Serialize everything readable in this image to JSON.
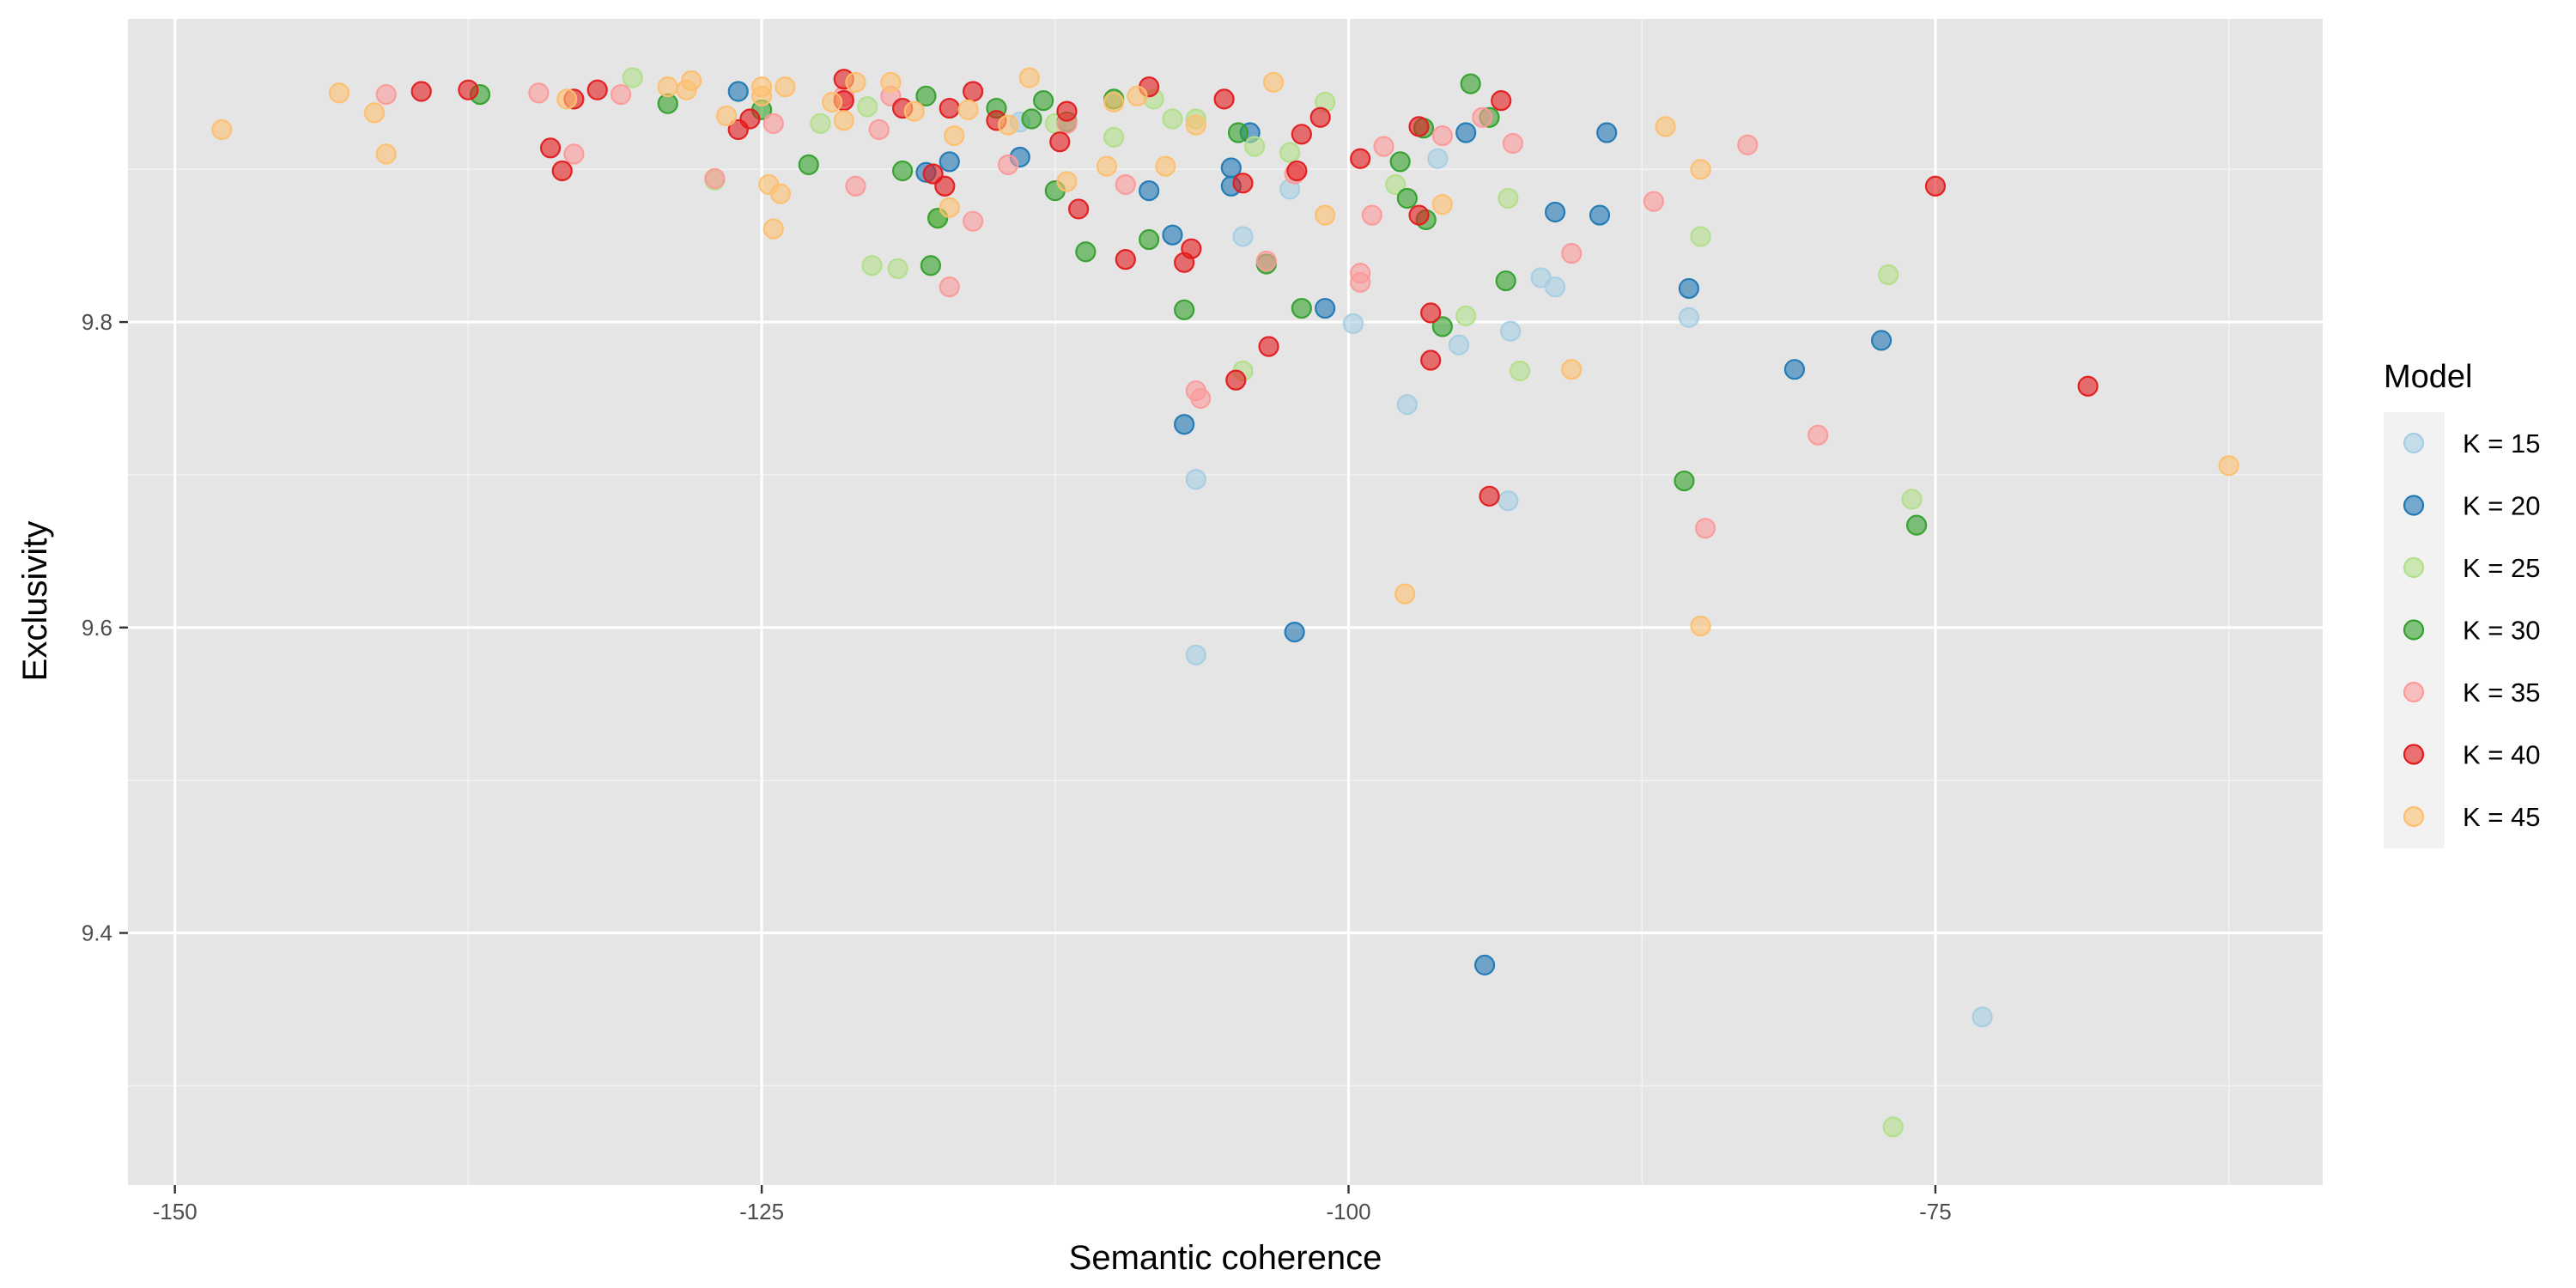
{
  "chart_data": {
    "type": "scatter",
    "title": "",
    "xlabel": "Semantic coherence",
    "ylabel": "Exclusivity",
    "xlim": [
      -152,
      -58.5
    ],
    "ylim": [
      9.235,
      9.9985
    ],
    "x_ticks": [
      -150,
      -125,
      -100,
      -75
    ],
    "x_tick_labels": [
      "-150",
      "-125",
      "-100",
      "-75"
    ],
    "y_ticks": [
      9.4,
      9.6,
      9.8
    ],
    "y_tick_labels": [
      "9.4",
      "9.6",
      "9.8"
    ],
    "grid": true,
    "panel_background": "#e5e5e5",
    "grid_color": "#ffffff",
    "legend": {
      "title": "Model",
      "position": "right"
    },
    "series": [
      {
        "name": "K = 15",
        "color": "#a6cee3",
        "points": [
          [
            -114,
            9.931
          ],
          [
            -106.5,
            9.697
          ],
          [
            -106.5,
            9.582
          ],
          [
            -104.5,
            9.856
          ],
          [
            -102.5,
            9.887
          ],
          [
            -99.8,
            9.799
          ],
          [
            -97.5,
            9.746
          ],
          [
            -96.2,
            9.907
          ],
          [
            -95.3,
            9.785
          ],
          [
            -93.1,
            9.794
          ],
          [
            -93.2,
            9.683
          ],
          [
            -91.8,
            9.829
          ],
          [
            -91.2,
            9.823
          ],
          [
            -85.5,
            9.803
          ],
          [
            -73,
            9.345
          ]
        ]
      },
      {
        "name": "K = 20",
        "color": "#1f78b4",
        "points": [
          [
            -126,
            9.951
          ],
          [
            -118,
            9.898
          ],
          [
            -117,
            9.905
          ],
          [
            -114,
            9.908
          ],
          [
            -108.5,
            9.886
          ],
          [
            -107.5,
            9.857
          ],
          [
            -107,
            9.733
          ],
          [
            -105,
            9.901
          ],
          [
            -105,
            9.889
          ],
          [
            -104.2,
            9.924
          ],
          [
            -102.3,
            9.597
          ],
          [
            -101,
            9.809
          ],
          [
            -95,
            9.924
          ],
          [
            -94.2,
            9.379
          ],
          [
            -91.2,
            9.872
          ],
          [
            -89.3,
            9.87
          ],
          [
            -89,
            9.924
          ],
          [
            -85.5,
            9.822
          ],
          [
            -81,
            9.769
          ],
          [
            -77.3,
            9.788
          ]
        ]
      },
      {
        "name": "K = 25",
        "color": "#b2df8a",
        "points": [
          [
            -130.5,
            9.96
          ],
          [
            -127,
            9.893
          ],
          [
            -122.5,
            9.93
          ],
          [
            -120.5,
            9.941
          ],
          [
            -120.3,
            9.837
          ],
          [
            -119.2,
            9.835
          ],
          [
            -117.5,
            9.868
          ],
          [
            -112.5,
            9.93
          ],
          [
            -110,
            9.921
          ],
          [
            -108.3,
            9.946
          ],
          [
            -107.5,
            9.933
          ],
          [
            -106.5,
            9.933
          ],
          [
            -104.5,
            9.768
          ],
          [
            -104,
            9.915
          ],
          [
            -102.5,
            9.911
          ],
          [
            -101,
            9.944
          ],
          [
            -98,
            9.89
          ],
          [
            -95,
            9.804
          ],
          [
            -93.2,
            9.881
          ],
          [
            -92.7,
            9.768
          ],
          [
            -85,
            9.856
          ],
          [
            -77,
            9.831
          ],
          [
            -76,
            9.684
          ],
          [
            -76.8,
            9.273
          ]
        ]
      },
      {
        "name": "K = 30",
        "color": "#33a02c",
        "points": [
          [
            -137,
            9.949
          ],
          [
            -129,
            9.943
          ],
          [
            -125,
            9.939
          ],
          [
            -123,
            9.903
          ],
          [
            -119,
            9.899
          ],
          [
            -118,
            9.948
          ],
          [
            -117.8,
            9.837
          ],
          [
            -117.5,
            9.868
          ],
          [
            -115,
            9.94
          ],
          [
            -113.5,
            9.933
          ],
          [
            -113,
            9.945
          ],
          [
            -112.5,
            9.886
          ],
          [
            -112,
            9.931
          ],
          [
            -111.2,
            9.846
          ],
          [
            -110,
            9.946
          ],
          [
            -108.5,
            9.854
          ],
          [
            -107,
            9.808
          ],
          [
            -104.7,
            9.924
          ],
          [
            -103.5,
            9.838
          ],
          [
            -102,
            9.809
          ],
          [
            -97.8,
            9.905
          ],
          [
            -97.5,
            9.881
          ],
          [
            -96.8,
            9.927
          ],
          [
            -96.7,
            9.867
          ],
          [
            -96,
            9.797
          ],
          [
            -94.8,
            9.956
          ],
          [
            -94,
            9.934
          ],
          [
            -93.3,
            9.827
          ],
          [
            -85.7,
            9.696
          ],
          [
            -75.8,
            9.667
          ]
        ]
      },
      {
        "name": "K = 35",
        "color": "#fb9a99",
        "points": [
          [
            -141,
            9.949
          ],
          [
            -134.5,
            9.95
          ],
          [
            -133,
            9.91
          ],
          [
            -131,
            9.949
          ],
          [
            -127,
            9.894
          ],
          [
            -124.5,
            9.93
          ],
          [
            -121.5,
            9.948
          ],
          [
            -121,
            9.889
          ],
          [
            -120,
            9.926
          ],
          [
            -119.5,
            9.948
          ],
          [
            -117,
            9.823
          ],
          [
            -116,
            9.866
          ],
          [
            -114.5,
            9.903
          ],
          [
            -112,
            9.93
          ],
          [
            -109.5,
            9.89
          ],
          [
            -106.5,
            9.755
          ],
          [
            -106.3,
            9.75
          ],
          [
            -103.5,
            9.84
          ],
          [
            -102.3,
            9.897
          ],
          [
            -99.5,
            9.832
          ],
          [
            -99.5,
            9.826
          ],
          [
            -99,
            9.87
          ],
          [
            -98.5,
            9.915
          ],
          [
            -96,
            9.922
          ],
          [
            -94.3,
            9.934
          ],
          [
            -93,
            9.917
          ],
          [
            -90.5,
            9.845
          ],
          [
            -87,
            9.879
          ],
          [
            -84.8,
            9.665
          ],
          [
            -83,
            9.916
          ],
          [
            -80,
            9.726
          ]
        ]
      },
      {
        "name": "K = 40",
        "color": "#e31a1c",
        "points": [
          [
            -139.5,
            9.951
          ],
          [
            -137.5,
            9.952
          ],
          [
            -134,
            9.914
          ],
          [
            -133.5,
            9.899
          ],
          [
            -133,
            9.946
          ],
          [
            -132,
            9.952
          ],
          [
            -126,
            9.926
          ],
          [
            -125.5,
            9.933
          ],
          [
            -121.5,
            9.959
          ],
          [
            -121.5,
            9.945
          ],
          [
            -119,
            9.94
          ],
          [
            -117.7,
            9.897
          ],
          [
            -117.2,
            9.889
          ],
          [
            -117,
            9.94
          ],
          [
            -116,
            9.951
          ],
          [
            -115,
            9.932
          ],
          [
            -112.3,
            9.918
          ],
          [
            -112,
            9.938
          ],
          [
            -111.5,
            9.874
          ],
          [
            -109.5,
            9.841
          ],
          [
            -108.5,
            9.954
          ],
          [
            -107,
            9.839
          ],
          [
            -106.7,
            9.848
          ],
          [
            -105.3,
            9.946
          ],
          [
            -104.8,
            9.762
          ],
          [
            -104.5,
            9.891
          ],
          [
            -103.4,
            9.784
          ],
          [
            -102.2,
            9.899
          ],
          [
            -102,
            9.923
          ],
          [
            -101.2,
            9.934
          ],
          [
            -99.5,
            9.907
          ],
          [
            -97,
            9.87
          ],
          [
            -97,
            9.928
          ],
          [
            -96.5,
            9.806
          ],
          [
            -96.5,
            9.775
          ],
          [
            -94,
            9.686
          ],
          [
            -93.5,
            9.945
          ],
          [
            -75,
            9.889
          ],
          [
            -68.5,
            9.758
          ]
        ]
      },
      {
        "name": "K = 45",
        "color": "#fdbf6f",
        "points": [
          [
            -148,
            9.926
          ],
          [
            -143,
            9.95
          ],
          [
            -141.5,
            9.937
          ],
          [
            -141,
            9.91
          ],
          [
            -133.3,
            9.946
          ],
          [
            -129,
            9.954
          ],
          [
            -128.2,
            9.952
          ],
          [
            -128,
            9.958
          ],
          [
            -126.5,
            9.935
          ],
          [
            -125,
            9.954
          ],
          [
            -125,
            9.948
          ],
          [
            -124.7,
            9.89
          ],
          [
            -124.5,
            9.861
          ],
          [
            -124.2,
            9.884
          ],
          [
            -124,
            9.954
          ],
          [
            -122,
            9.944
          ],
          [
            -121.5,
            9.932
          ],
          [
            -121,
            9.957
          ],
          [
            -119.5,
            9.957
          ],
          [
            -118.5,
            9.938
          ],
          [
            -117,
            9.875
          ],
          [
            -116.8,
            9.922
          ],
          [
            -116.2,
            9.939
          ],
          [
            -114.5,
            9.929
          ],
          [
            -113.6,
            9.96
          ],
          [
            -112,
            9.892
          ],
          [
            -110.3,
            9.902
          ],
          [
            -110,
            9.944
          ],
          [
            -109,
            9.948
          ],
          [
            -107.8,
            9.902
          ],
          [
            -106.5,
            9.929
          ],
          [
            -103.2,
            9.957
          ],
          [
            -101,
            9.87
          ],
          [
            -97.6,
            9.622
          ],
          [
            -96,
            9.877
          ],
          [
            -90.5,
            9.769
          ],
          [
            -86.5,
            9.928
          ],
          [
            -85,
            9.9
          ],
          [
            -85,
            9.601
          ],
          [
            -62.5,
            9.706
          ]
        ]
      }
    ]
  }
}
